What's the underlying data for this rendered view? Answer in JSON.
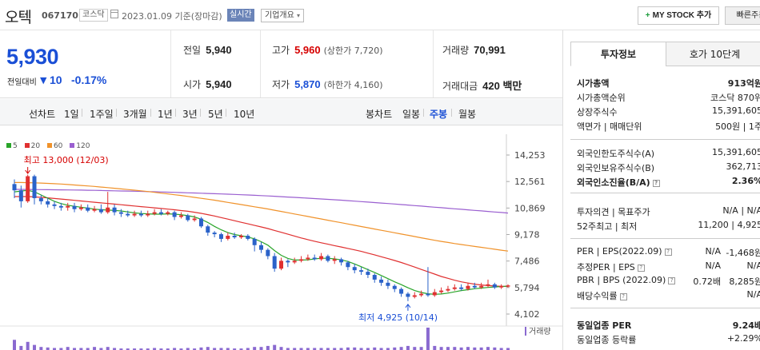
{
  "header": {
    "stock_name": "오텍",
    "stock_code": "067170",
    "market": "코스닥",
    "date_text": "2023.01.09 기준(장마감)",
    "realtime_label": "실시간",
    "company_info_label": "기업개요",
    "my_stock_label": "MY STOCK 추가",
    "quick_order_label": "빠른주문"
  },
  "quote": {
    "price": "5,930",
    "change_label": "전일대비",
    "change_value": "10",
    "change_pct": "-0.17%",
    "prev_close_label": "전일",
    "prev_close": "5,940",
    "open_label": "시가",
    "open": "5,940",
    "high_label": "고가",
    "high": "5,960",
    "upper_limit": "(상한가 7,720)",
    "low_label": "저가",
    "low": "5,870",
    "lower_limit": "(하한가 4,160)",
    "volume_label": "거래량",
    "volume": "70,991",
    "amount_label": "거래대금",
    "amount": "420 백만"
  },
  "periods": {
    "line_label": "선차트",
    "line_items": [
      "1일",
      "1주일",
      "3개월",
      "1년",
      "3년",
      "5년",
      "10년"
    ],
    "candle_label": "봉차트",
    "candle_items": [
      "일봉",
      "주봉",
      "월봉"
    ],
    "active_candle": "주봉"
  },
  "chart_data": {
    "type": "candlestick",
    "legend": [
      {
        "name": "5",
        "color": "#2aa52a"
      },
      {
        "name": "20",
        "color": "#e03030"
      },
      {
        "name": "60",
        "color": "#f0922a"
      },
      {
        "name": "120",
        "color": "#9a5fd0"
      }
    ],
    "y_ticks": [
      "14,253",
      "12,561",
      "10,869",
      "9,178",
      "7,486",
      "5,794",
      "4,102"
    ],
    "ylim": [
      4102,
      14253
    ],
    "high_annotation": "최고 13,000 (12/03)",
    "low_annotation": "최저 4,925 (10/14)",
    "volume_label": "거래량",
    "colors": {
      "up": "#e03030",
      "down": "#2a62c9"
    },
    "candles": [
      [
        12400,
        12000,
        12700,
        11500
      ],
      [
        12000,
        11300,
        12300,
        10900
      ],
      [
        11300,
        12900,
        13000,
        11200
      ],
      [
        12900,
        11500,
        13000,
        11100
      ],
      [
        11500,
        11300,
        11700,
        11100
      ],
      [
        11300,
        11100,
        11500,
        10900
      ],
      [
        11100,
        11000,
        11300,
        10800
      ],
      [
        11000,
        10900,
        11200,
        10700
      ],
      [
        10900,
        11000,
        11200,
        10700
      ],
      [
        11000,
        10800,
        11200,
        10600
      ],
      [
        10800,
        10900,
        11100,
        10700
      ],
      [
        10900,
        10700,
        11100,
        10600
      ],
      [
        10700,
        10800,
        11000,
        10600
      ],
      [
        10800,
        10600,
        11100,
        10500
      ],
      [
        10600,
        10900,
        11900,
        10500
      ],
      [
        10900,
        10600,
        11100,
        10400
      ],
      [
        10600,
        10500,
        10800,
        10300
      ],
      [
        10500,
        10400,
        10700,
        10300
      ],
      [
        10400,
        10500,
        10700,
        10300
      ],
      [
        10500,
        10400,
        10700,
        10300
      ],
      [
        10400,
        10500,
        10700,
        10300
      ],
      [
        10500,
        10600,
        10800,
        10400
      ],
      [
        10600,
        10500,
        10800,
        10400
      ],
      [
        10500,
        10600,
        10700,
        10400
      ],
      [
        10600,
        10300,
        10700,
        10100
      ],
      [
        10300,
        10400,
        10600,
        10200
      ],
      [
        10400,
        10100,
        10500,
        10000
      ],
      [
        10100,
        10200,
        10400,
        10000
      ],
      [
        10200,
        9700,
        10300,
        9600
      ],
      [
        9700,
        9300,
        9800,
        9100
      ],
      [
        9300,
        9200,
        9400,
        9000
      ],
      [
        9200,
        8900,
        9300,
        8700
      ],
      [
        8900,
        9100,
        9300,
        8800
      ],
      [
        9100,
        9000,
        9300,
        8900
      ],
      [
        9000,
        9100,
        9200,
        8900
      ],
      [
        9100,
        8900,
        9200,
        8800
      ],
      [
        8900,
        8500,
        9000,
        8100
      ],
      [
        8500,
        8200,
        8700,
        8000
      ],
      [
        8200,
        7800,
        8300,
        7600
      ],
      [
        7800,
        7000,
        8000,
        6800
      ],
      [
        7000,
        7500,
        7700,
        6900
      ],
      [
        7500,
        7400,
        7600,
        7100
      ],
      [
        7400,
        7500,
        7700,
        7300
      ],
      [
        7500,
        7600,
        7800,
        7400
      ],
      [
        7600,
        7700,
        7900,
        7500
      ],
      [
        7700,
        7600,
        7900,
        7500
      ],
      [
        7600,
        7800,
        8000,
        7500
      ],
      [
        7800,
        7500,
        7900,
        7400
      ],
      [
        7500,
        7600,
        7800,
        7300
      ],
      [
        7600,
        7400,
        7700,
        7200
      ],
      [
        7400,
        7100,
        7500,
        6900
      ],
      [
        7100,
        6900,
        7300,
        6700
      ],
      [
        6900,
        6800,
        7100,
        6600
      ],
      [
        6800,
        6600,
        7000,
        6400
      ],
      [
        6600,
        6300,
        6700,
        6100
      ],
      [
        6300,
        6100,
        6500,
        5900
      ],
      [
        6100,
        5900,
        6300,
        5700
      ],
      [
        5900,
        5700,
        6000,
        5500
      ],
      [
        5700,
        5400,
        5800,
        5200
      ],
      [
        5400,
        5200,
        5500,
        4925
      ],
      [
        5200,
        5300,
        5500,
        5100
      ],
      [
        5300,
        5400,
        5600,
        5200
      ],
      [
        5400,
        5300,
        7100,
        5200
      ],
      [
        5300,
        5500,
        5700,
        5200
      ],
      [
        5500,
        5600,
        5800,
        5400
      ],
      [
        5600,
        5700,
        5900,
        5500
      ],
      [
        5700,
        5800,
        6000,
        5600
      ],
      [
        5800,
        5700,
        6000,
        5600
      ],
      [
        5700,
        5900,
        6100,
        5600
      ],
      [
        5900,
        5800,
        6100,
        5700
      ],
      [
        5800,
        5900,
        6100,
        5700
      ],
      [
        5900,
        6000,
        6300,
        5800
      ],
      [
        6000,
        5800,
        6100,
        5700
      ],
      [
        5800,
        5900,
        6000,
        5700
      ],
      [
        5900,
        5930,
        6000,
        5800
      ]
    ],
    "ma5": [
      11900,
      11950,
      12000,
      11900,
      11700,
      11500,
      11300,
      11150,
      11050,
      10980,
      10920,
      10860,
      10800,
      10760,
      10740,
      10720,
      10680,
      10620,
      10560,
      10520,
      10500,
      10480,
      10480,
      10500,
      10480,
      10440,
      10380,
      10300,
      10150,
      9950,
      9700,
      9480,
      9300,
      9180,
      9100,
      9020,
      8900,
      8720,
      8500,
      8150,
      7850,
      7650,
      7550,
      7550,
      7560,
      7620,
      7660,
      7660,
      7620,
      7560,
      7460,
      7300,
      7120,
      6940,
      6760,
      6560,
      6360,
      6160,
      5980,
      5780,
      5600,
      5480,
      5400,
      5360,
      5380,
      5440,
      5520,
      5600,
      5660,
      5720,
      5760,
      5800,
      5830,
      5860,
      5880
    ],
    "ma20": [
      11600,
      11600,
      11600,
      11580,
      11550,
      11520,
      11480,
      11440,
      11400,
      11360,
      11320,
      11280,
      11240,
      11200,
      11160,
      11120,
      11080,
      11040,
      11000,
      10960,
      10920,
      10880,
      10840,
      10800,
      10760,
      10710,
      10660,
      10600,
      10530,
      10450,
      10360,
      10260,
      10160,
      10060,
      9960,
      9860,
      9760,
      9660,
      9560,
      9440,
      9320,
      9200,
      9080,
      8960,
      8850,
      8750,
      8650,
      8560,
      8470,
      8380,
      8290,
      8200,
      8100,
      7990,
      7880,
      7760,
      7640,
      7520,
      7390,
      7250,
      7100,
      6950,
      6800,
      6650,
      6500,
      6380,
      6260,
      6160,
      6080,
      6010,
      5960,
      5920,
      5890,
      5870,
      5860
    ],
    "ma60": [
      12500,
      12500,
      12490,
      12480,
      12460,
      12440,
      12420,
      12400,
      12370,
      12340,
      12310,
      12280,
      12250,
      12210,
      12170,
      12130,
      12090,
      12050,
      12010,
      11970,
      11920,
      11870,
      11820,
      11770,
      11720,
      11670,
      11610,
      11550,
      11490,
      11430,
      11370,
      11300,
      11230,
      11160,
      11090,
      11020,
      10950,
      10880,
      10810,
      10730,
      10650,
      10570,
      10490,
      10410,
      10330,
      10250,
      10170,
      10090,
      10010,
      9930,
      9850,
      9770,
      9690,
      9610,
      9530,
      9450,
      9370,
      9290,
      9210,
      9130,
      9050,
      8970,
      8890,
      8810,
      8740,
      8670,
      8600,
      8540,
      8480,
      8420,
      8360,
      8300,
      8240,
      8180,
      8120
    ],
    "ma120": [
      12060,
      12060,
      12055,
      12050,
      12045,
      12040,
      12035,
      12030,
      12025,
      12020,
      12012,
      12004,
      11996,
      11988,
      11980,
      11970,
      11960,
      11950,
      11940,
      11930,
      11918,
      11906,
      11894,
      11882,
      11870,
      11856,
      11842,
      11828,
      11814,
      11800,
      11784,
      11768,
      11752,
      11736,
      11720,
      11700,
      11680,
      11660,
      11640,
      11620,
      11596,
      11572,
      11548,
      11524,
      11500,
      11474,
      11448,
      11422,
      11396,
      11370,
      11340,
      11310,
      11280,
      11250,
      11220,
      11188,
      11156,
      11124,
      11092,
      11060,
      11026,
      10992,
      10958,
      10924,
      10890,
      10856,
      10822,
      10788,
      10754,
      10720,
      10686,
      10652,
      10618,
      10584,
      10550
    ],
    "volumes": [
      1,
      0.4,
      0.8,
      0.5,
      0.3,
      0.25,
      0.2,
      0.2,
      0.3,
      0.2,
      0.2,
      0.2,
      0.3,
      0.2,
      0.3,
      0.2,
      0.15,
      0.15,
      0.15,
      0.15,
      0.15,
      0.2,
      0.15,
      0.15,
      0.2,
      0.15,
      0.2,
      0.15,
      0.25,
      0.3,
      0.2,
      0.2,
      0.2,
      0.15,
      0.15,
      0.2,
      0.3,
      0.3,
      0.4,
      0.5,
      0.3,
      0.2,
      0.2,
      0.2,
      0.2,
      0.2,
      0.2,
      0.2,
      0.2,
      0.2,
      0.25,
      0.25,
      0.2,
      0.2,
      0.25,
      0.2,
      0.2,
      0.25,
      0.3,
      0.4,
      0.3,
      0.3,
      2.2,
      0.4,
      0.3,
      0.3,
      0.3,
      0.25,
      0.3,
      0.25,
      0.25,
      0.3,
      0.25,
      0.2,
      0.2
    ]
  },
  "invest": {
    "tab_active": "투자정보",
    "tab_other": "호가 10단계",
    "market_cap_label": "시가총액",
    "market_cap": "913억원",
    "cap_rank_label": "시가총액순위",
    "cap_rank": "코스닥 870위",
    "shares_label": "상장주식수",
    "shares": "15,391,605",
    "par_label": "액면가 | 매매단위",
    "par": "500원 | 1주",
    "foreign_limit_label": "외국인한도주식수(A)",
    "foreign_limit": "15,391,605",
    "foreign_hold_label": "외국인보유주식수(B)",
    "foreign_hold": "362,713",
    "foreign_ratio_label": "외국인소진율(B/A)",
    "foreign_ratio": "2.36%",
    "opinion_label": "투자의견 | 목표주가",
    "opinion": "N/A | N/A",
    "w52_label": "52주최고 | 최저",
    "w52": "11,200 | 4,925",
    "per_label": "PER | EPS(2022.09)",
    "per": "N/A",
    "eps": "-1,468원",
    "est_per_label": "추정PER | EPS",
    "est_per": "N/A",
    "est_eps": "N/A",
    "pbr_label": "PBR | BPS (2022.09)",
    "pbr": "0.72배",
    "bps": "8,285원",
    "div_label": "배당수익률",
    "div": "N/A",
    "sector_per_label": "동일업종 PER",
    "sector_per": "9.24배",
    "sector_chg_label": "동일업종 등락률",
    "sector_chg": "+2.29%"
  }
}
